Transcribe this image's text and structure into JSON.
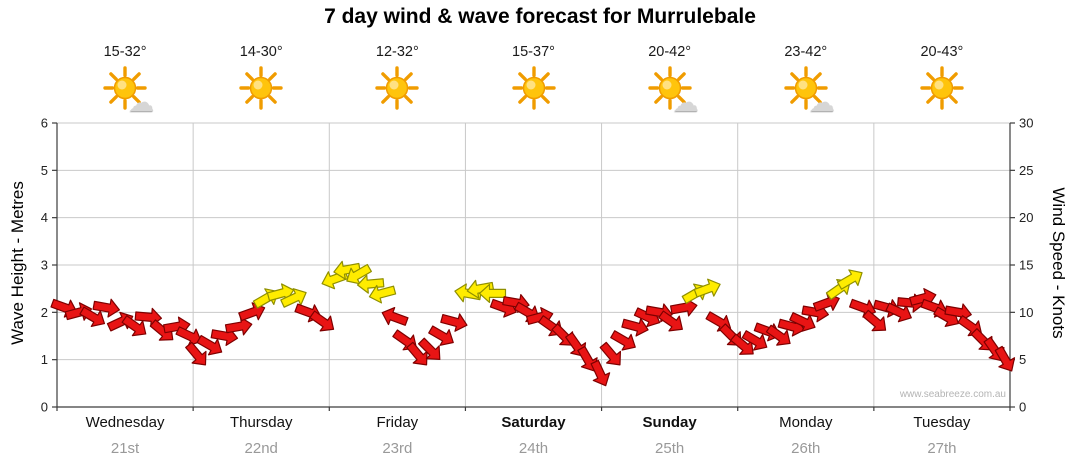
{
  "title": "7 day wind & wave forecast for Murrulebale",
  "watermark": "www.seabreeze.com.au",
  "days": [
    {
      "name": "Wednesday",
      "date": "21st",
      "temp": "15-32°",
      "icon": "sun-cloud",
      "bold": false
    },
    {
      "name": "Thursday",
      "date": "22nd",
      "temp": "14-30°",
      "icon": "sun",
      "bold": false
    },
    {
      "name": "Friday",
      "date": "23rd",
      "temp": "12-32°",
      "icon": "sun",
      "bold": false
    },
    {
      "name": "Saturday",
      "date": "24th",
      "temp": "15-37°",
      "icon": "sun",
      "bold": true
    },
    {
      "name": "Sunday",
      "date": "25th",
      "temp": "20-42°",
      "icon": "sun-cloud",
      "bold": true
    },
    {
      "name": "Monday",
      "date": "26th",
      "temp": "23-42°",
      "icon": "sun-cloud",
      "bold": false
    },
    {
      "name": "Tuesday",
      "date": "27th",
      "temp": "20-43°",
      "icon": "sun",
      "bold": false
    }
  ],
  "axes": {
    "left_label": "Wave Height - Metres",
    "right_label": "Wind Speed - Knots",
    "left_ticks": [
      0,
      1,
      2,
      3,
      4,
      5,
      6
    ],
    "right_ticks": [
      0,
      5,
      10,
      15,
      20,
      25,
      30
    ]
  },
  "chart_data": {
    "type": "wind-arrows",
    "title": "7 day wind & wave forecast for Murrulebale",
    "x_categories": [
      "Wednesday 21st",
      "Thursday 22nd",
      "Friday 23rd",
      "Saturday 24th",
      "Sunday 25th",
      "Monday 26th",
      "Tuesday 27th"
    ],
    "y_left": {
      "label": "Wave Height - Metres",
      "range": [
        0,
        6
      ],
      "grid": true
    },
    "y_right": {
      "label": "Wind Speed - Knots",
      "range": [
        0,
        30
      ]
    },
    "legend": "none",
    "arrow_y_encodes": "wind_speed_knots",
    "arrow_point_format": [
      "x_fraction_of_week",
      "wind_speed_knots",
      "direction_deg_cw_from_east",
      "color"
    ],
    "arrows": [
      [
        0.008,
        10.5,
        20,
        "r"
      ],
      [
        0.023,
        10.0,
        -15,
        "r"
      ],
      [
        0.038,
        9.5,
        30,
        "r"
      ],
      [
        0.052,
        10.5,
        10,
        "r"
      ],
      [
        0.067,
        9.0,
        -25,
        "r"
      ],
      [
        0.082,
        8.5,
        35,
        "r"
      ],
      [
        0.096,
        9.5,
        5,
        "r"
      ],
      [
        0.111,
        8.0,
        40,
        "r"
      ],
      [
        0.126,
        8.5,
        -10,
        "r"
      ],
      [
        0.139,
        7.5,
        25,
        "r"
      ],
      [
        0.147,
        5.5,
        50,
        "r"
      ],
      [
        0.161,
        6.5,
        30,
        "r"
      ],
      [
        0.176,
        7.5,
        10,
        "r"
      ],
      [
        0.191,
        8.5,
        -10,
        "r"
      ],
      [
        0.205,
        10.0,
        -20,
        "r"
      ],
      [
        0.22,
        11.5,
        -30,
        "y"
      ],
      [
        0.235,
        12.0,
        -15,
        "y"
      ],
      [
        0.249,
        11.5,
        -25,
        "y"
      ],
      [
        0.264,
        10.0,
        20,
        "r"
      ],
      [
        0.279,
        9.0,
        35,
        "r"
      ],
      [
        0.291,
        13.5,
        160,
        "y"
      ],
      [
        0.304,
        14.5,
        170,
        "y"
      ],
      [
        0.316,
        14.0,
        150,
        "y"
      ],
      [
        0.329,
        13.0,
        175,
        "y"
      ],
      [
        0.341,
        12.0,
        165,
        "y"
      ],
      [
        0.354,
        9.5,
        200,
        "r"
      ],
      [
        0.366,
        7.0,
        35,
        "r"
      ],
      [
        0.379,
        5.5,
        50,
        "r"
      ],
      [
        0.392,
        6.0,
        45,
        "r"
      ],
      [
        0.404,
        7.5,
        30,
        "r"
      ],
      [
        0.417,
        9.0,
        15,
        "r"
      ],
      [
        0.431,
        12.0,
        190,
        "y"
      ],
      [
        0.444,
        12.5,
        170,
        "y"
      ],
      [
        0.457,
        12.0,
        180,
        "y"
      ],
      [
        0.469,
        10.5,
        20,
        "r"
      ],
      [
        0.482,
        11.0,
        10,
        "r"
      ],
      [
        0.494,
        10.0,
        30,
        "r"
      ],
      [
        0.507,
        9.5,
        -15,
        "r"
      ],
      [
        0.519,
        8.5,
        35,
        "r"
      ],
      [
        0.532,
        7.5,
        45,
        "r"
      ],
      [
        0.545,
        6.5,
        55,
        "r"
      ],
      [
        0.557,
        5.0,
        60,
        "r"
      ],
      [
        0.57,
        3.5,
        65,
        "r"
      ],
      [
        0.582,
        5.5,
        50,
        "r"
      ],
      [
        0.595,
        7.0,
        30,
        "r"
      ],
      [
        0.607,
        8.5,
        15,
        "r"
      ],
      [
        0.62,
        9.5,
        25,
        "r"
      ],
      [
        0.632,
        10.0,
        10,
        "r"
      ],
      [
        0.645,
        9.0,
        35,
        "r"
      ],
      [
        0.658,
        10.5,
        -10,
        "r"
      ],
      [
        0.67,
        12.0,
        -30,
        "y"
      ],
      [
        0.683,
        12.5,
        -20,
        "y"
      ],
      [
        0.695,
        9.0,
        30,
        "r"
      ],
      [
        0.708,
        7.5,
        45,
        "r"
      ],
      [
        0.72,
        6.5,
        40,
        "r"
      ],
      [
        0.733,
        7.0,
        30,
        "r"
      ],
      [
        0.746,
        8.0,
        20,
        "r"
      ],
      [
        0.758,
        7.5,
        35,
        "r"
      ],
      [
        0.771,
        8.5,
        15,
        "r"
      ],
      [
        0.783,
        9.0,
        25,
        "r"
      ],
      [
        0.796,
        10.0,
        10,
        "r"
      ],
      [
        0.808,
        11.0,
        -20,
        "r"
      ],
      [
        0.821,
        12.5,
        -35,
        "y"
      ],
      [
        0.833,
        13.5,
        -30,
        "y"
      ],
      [
        0.846,
        10.5,
        20,
        "r"
      ],
      [
        0.859,
        9.0,
        40,
        "r"
      ],
      [
        0.871,
        10.5,
        15,
        "r"
      ],
      [
        0.884,
        10.0,
        25,
        "r"
      ],
      [
        0.896,
        11.0,
        5,
        "r"
      ],
      [
        0.909,
        11.5,
        -15,
        "r"
      ],
      [
        0.921,
        10.5,
        20,
        "r"
      ],
      [
        0.934,
        9.5,
        30,
        "r"
      ],
      [
        0.946,
        10.0,
        10,
        "r"
      ],
      [
        0.959,
        8.5,
        35,
        "r"
      ],
      [
        0.972,
        7.0,
        45,
        "r"
      ],
      [
        0.984,
        6.0,
        55,
        "r"
      ],
      [
        0.995,
        5.0,
        60,
        "r"
      ]
    ]
  },
  "colors": {
    "arrow_red": "#e81414",
    "arrow_red_outline": "#7e0000",
    "arrow_yellow": "#ffec00",
    "arrow_yellow_outline": "#8f8f00",
    "grid": "#c9c9c9",
    "axis": "#3c3c3c",
    "tick_text": "#222222",
    "date_grey": "#999999",
    "watermark": "#b4b4b4",
    "sun_fill": "#ffc40c",
    "sun_ray": "#f09c00",
    "cloud": "#d6d6d6"
  }
}
